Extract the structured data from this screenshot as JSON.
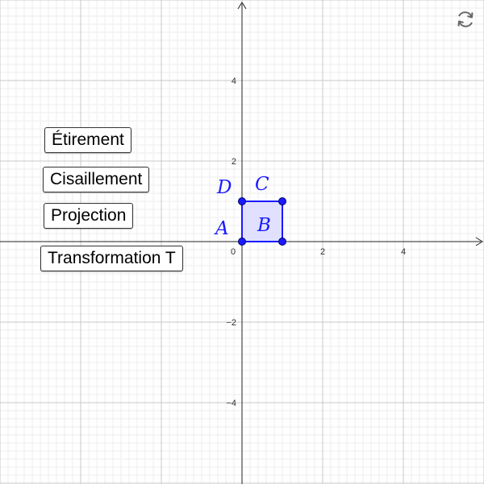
{
  "buttons": {
    "etirement": "Étirement",
    "cisaillement": "Cisaillement",
    "projection": "Projection",
    "transformation": "Transformation T"
  },
  "axes": {
    "x_ticks": [
      {
        "value": 0,
        "label": "0"
      },
      {
        "value": 2,
        "label": "2"
      },
      {
        "value": 4,
        "label": "4"
      }
    ],
    "y_ticks": [
      {
        "value": 4,
        "label": "4"
      },
      {
        "value": 2,
        "label": "2"
      },
      {
        "value": -2,
        "label": "−2"
      },
      {
        "value": -4,
        "label": "−4"
      }
    ]
  },
  "points": [
    {
      "name": "A",
      "x": 0,
      "y": 0
    },
    {
      "name": "B",
      "x": 1,
      "y": 0
    },
    {
      "name": "C",
      "x": 1,
      "y": 1
    },
    {
      "name": "D",
      "x": 0,
      "y": 1
    }
  ],
  "colors": {
    "accent": "#1a1aff",
    "polygon_fill": "#dcdcff",
    "axis": "#222222",
    "grid_major": "#c8c8c8",
    "grid_minor": "#eeeeee",
    "reset_icon": "#666666"
  },
  "icons": {
    "reset": "refresh-icon"
  }
}
